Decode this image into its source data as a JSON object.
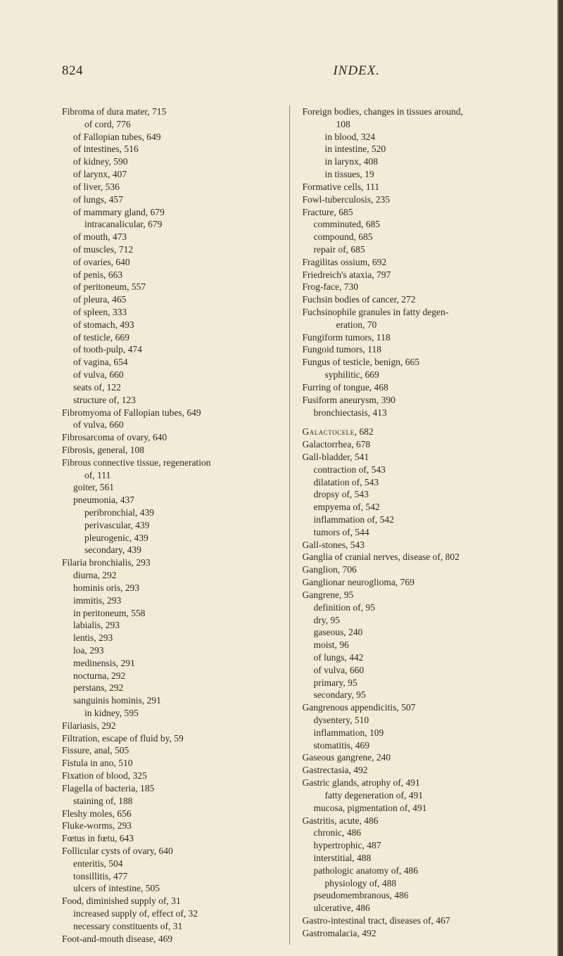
{
  "header": {
    "page_number": "824",
    "title": "INDEX."
  },
  "left": [
    {
      "cls": "main",
      "t": "Fibroma of dura mater, 715"
    },
    {
      "cls": "sub2",
      "t": "of cord, 776"
    },
    {
      "cls": "sub1",
      "t": "of Fallopian tubes, 649"
    },
    {
      "cls": "sub1",
      "t": "of intestines, 516"
    },
    {
      "cls": "sub1",
      "t": "of kidney, 590"
    },
    {
      "cls": "sub1",
      "t": "of larynx, 407"
    },
    {
      "cls": "sub1",
      "t": "of liver, 536"
    },
    {
      "cls": "sub1",
      "t": "of lungs, 457"
    },
    {
      "cls": "sub1",
      "t": "of mammary gland, 679"
    },
    {
      "cls": "sub2",
      "t": "intracanalicular, 679"
    },
    {
      "cls": "sub1",
      "t": "of mouth, 473"
    },
    {
      "cls": "sub1",
      "t": "of muscles, 712"
    },
    {
      "cls": "sub1",
      "t": "of ovaries, 640"
    },
    {
      "cls": "sub1",
      "t": "of penis, 663"
    },
    {
      "cls": "sub1",
      "t": "of peritoneum, 557"
    },
    {
      "cls": "sub1",
      "t": "of pleura, 465"
    },
    {
      "cls": "sub1",
      "t": "of spleen, 333"
    },
    {
      "cls": "sub1",
      "t": "of stomach, 493"
    },
    {
      "cls": "sub1",
      "t": "of testicle, 669"
    },
    {
      "cls": "sub1",
      "t": "of tooth-pulp, 474"
    },
    {
      "cls": "sub1",
      "t": "of vagina, 654"
    },
    {
      "cls": "sub1",
      "t": "of vulva, 660"
    },
    {
      "cls": "sub1",
      "t": "seats of, 122"
    },
    {
      "cls": "sub1",
      "t": "structure of, 123"
    },
    {
      "cls": "main",
      "t": "Fibromyoma of Fallopian tubes, 649"
    },
    {
      "cls": "sub1",
      "t": "of vulva, 660"
    },
    {
      "cls": "main",
      "t": "Fibrosarcoma of ovary, 640"
    },
    {
      "cls": "main",
      "t": "Fibrosis, general, 108"
    },
    {
      "cls": "main",
      "t": "Fibrous connective tissue, regeneration"
    },
    {
      "cls": "sub2",
      "t": "of, 111"
    },
    {
      "cls": "sub1",
      "t": "goiter, 561"
    },
    {
      "cls": "sub1",
      "t": "pneumonia, 437"
    },
    {
      "cls": "sub2",
      "t": "peribronchial, 439"
    },
    {
      "cls": "sub2",
      "t": "perivascular, 439"
    },
    {
      "cls": "sub2",
      "t": "pleurogenic, 439"
    },
    {
      "cls": "sub2",
      "t": "secondary, 439"
    },
    {
      "cls": "main",
      "t": "Filaria bronchialis, 293"
    },
    {
      "cls": "sub1",
      "t": "diurna, 292"
    },
    {
      "cls": "sub1",
      "t": "hominis oris, 293"
    },
    {
      "cls": "sub1",
      "t": "immitis, 293"
    },
    {
      "cls": "sub1",
      "t": "in peritoneum, 558"
    },
    {
      "cls": "sub1",
      "t": "labialis, 293"
    },
    {
      "cls": "sub1",
      "t": "lentis, 293"
    },
    {
      "cls": "sub1",
      "t": "loa, 293"
    },
    {
      "cls": "sub1",
      "t": "medinensis, 291"
    },
    {
      "cls": "sub1",
      "t": "nocturna, 292"
    },
    {
      "cls": "sub1",
      "t": "perstans, 292"
    },
    {
      "cls": "sub1",
      "t": "sanguinis hominis, 291"
    },
    {
      "cls": "sub2",
      "t": "in kidney, 595"
    },
    {
      "cls": "main",
      "t": "Filariasis, 292"
    },
    {
      "cls": "main",
      "t": "Filtration, escape of fluid by, 59"
    },
    {
      "cls": "main",
      "t": "Fissure, anal, 505"
    },
    {
      "cls": "main",
      "t": "Fistula in ano, 510"
    },
    {
      "cls": "main",
      "t": "Fixation of blood, 325"
    },
    {
      "cls": "main",
      "t": "Flagella of bacteria, 185"
    },
    {
      "cls": "sub1",
      "t": "staining of, 188"
    },
    {
      "cls": "main",
      "t": "Fleshy moles, 656"
    },
    {
      "cls": "main",
      "t": "Fluke-worms, 293"
    },
    {
      "cls": "main",
      "t": "Fœtus in fœtu, 643"
    },
    {
      "cls": "main",
      "t": "Follicular cysts of ovary, 640"
    },
    {
      "cls": "sub1",
      "t": "enteritis, 504"
    },
    {
      "cls": "sub1",
      "t": "tonsillitis, 477"
    },
    {
      "cls": "sub1",
      "t": "ulcers of intestine, 505"
    },
    {
      "cls": "main",
      "t": "Food, diminished supply of, 31"
    },
    {
      "cls": "sub1",
      "t": "increased supply of, effect of, 32"
    },
    {
      "cls": "sub1",
      "t": "necessary constituents of, 31"
    },
    {
      "cls": "main",
      "t": "Foot-and-mouth disease, 469"
    }
  ],
  "right": [
    {
      "cls": "main",
      "t": "Foreign bodies, changes in tissues around,"
    },
    {
      "cls": "sub3",
      "t": "108"
    },
    {
      "cls": "sub2",
      "t": "in blood, 324"
    },
    {
      "cls": "sub2",
      "t": "in intestine, 520"
    },
    {
      "cls": "sub2",
      "t": "in larynx, 408"
    },
    {
      "cls": "sub2",
      "t": "in tissues, 19"
    },
    {
      "cls": "main",
      "t": "Formative cells, 111"
    },
    {
      "cls": "main",
      "t": "Fowl-tuberculosis, 235"
    },
    {
      "cls": "main",
      "t": "Fracture, 685"
    },
    {
      "cls": "sub1",
      "t": "comminuted, 685"
    },
    {
      "cls": "sub1",
      "t": "compound, 685"
    },
    {
      "cls": "sub1",
      "t": "repair of, 685"
    },
    {
      "cls": "main",
      "t": "Fragilitas ossium, 692"
    },
    {
      "cls": "main",
      "t": "Friedreich's ataxia, 797"
    },
    {
      "cls": "main",
      "t": "Frog-face, 730"
    },
    {
      "cls": "main",
      "t": "Fuchsin bodies of cancer, 272"
    },
    {
      "cls": "main",
      "t": "Fuchsinophile granules in fatty degen-"
    },
    {
      "cls": "sub3",
      "t": "eration, 70"
    },
    {
      "cls": "main",
      "t": "Fungiform tumors, 118"
    },
    {
      "cls": "main",
      "t": "Fungoid tumors, 118"
    },
    {
      "cls": "main",
      "t": "Fungus of testicle, benign, 665"
    },
    {
      "cls": "sub2",
      "t": "syphilitic, 669"
    },
    {
      "cls": "main",
      "t": "Furring of tongue, 468"
    },
    {
      "cls": "main",
      "t": "Fusiform aneurysm, 390"
    },
    {
      "cls": "sub1",
      "t": "bronchiectasis, 413"
    },
    {
      "cls": "gap",
      "t": ""
    },
    {
      "cls": "main",
      "t": "",
      "sc": "Galactocele",
      "tail": ", 682"
    },
    {
      "cls": "main",
      "t": "Galactorrhea, 678"
    },
    {
      "cls": "main",
      "t": "Gall-bladder, 541"
    },
    {
      "cls": "sub1",
      "t": "contraction of, 543"
    },
    {
      "cls": "sub1",
      "t": "dilatation of, 543"
    },
    {
      "cls": "sub1",
      "t": "dropsy of, 543"
    },
    {
      "cls": "sub1",
      "t": "empyema of, 542"
    },
    {
      "cls": "sub1",
      "t": "inflammation of, 542"
    },
    {
      "cls": "sub1",
      "t": "tumors of, 544"
    },
    {
      "cls": "main",
      "t": "Gall-stones, 543"
    },
    {
      "cls": "main",
      "t": "Ganglia of cranial nerves, disease of, 802"
    },
    {
      "cls": "main",
      "t": "Ganglion, 706"
    },
    {
      "cls": "main",
      "t": "Ganglionar neuroglioma, 769"
    },
    {
      "cls": "main",
      "t": "Gangrene, 95"
    },
    {
      "cls": "sub1",
      "t": "definition of, 95"
    },
    {
      "cls": "sub1",
      "t": "dry, 95"
    },
    {
      "cls": "sub1",
      "t": "gaseous, 240"
    },
    {
      "cls": "sub1",
      "t": "moist, 96"
    },
    {
      "cls": "sub1",
      "t": "of lungs, 442"
    },
    {
      "cls": "sub1",
      "t": "of vulva, 660"
    },
    {
      "cls": "sub1",
      "t": "primary, 95"
    },
    {
      "cls": "sub1",
      "t": "secondary, 95"
    },
    {
      "cls": "main",
      "t": "Gangrenous appendicitis, 507"
    },
    {
      "cls": "sub1",
      "t": "dysentery, 510"
    },
    {
      "cls": "sub1",
      "t": "inflammation, 109"
    },
    {
      "cls": "sub1",
      "t": "stomatitis, 469"
    },
    {
      "cls": "main",
      "t": "Gaseous gangrene, 240"
    },
    {
      "cls": "main",
      "t": "Gastrectasia, 492"
    },
    {
      "cls": "main",
      "t": "Gastric glands, atrophy of, 491"
    },
    {
      "cls": "sub2",
      "t": "fatty degeneration of, 491"
    },
    {
      "cls": "sub1",
      "t": "mucosa, pigmentation of, 491"
    },
    {
      "cls": "main",
      "t": "Gastritis, acute, 486"
    },
    {
      "cls": "sub1",
      "t": "chronic, 486"
    },
    {
      "cls": "sub1",
      "t": "hypertrophic, 487"
    },
    {
      "cls": "sub1",
      "t": "interstitial, 488"
    },
    {
      "cls": "sub1",
      "t": "pathologic anatomy of, 486"
    },
    {
      "cls": "sub2",
      "t": "physiology of, 488"
    },
    {
      "cls": "sub1",
      "t": "pseudomembranous, 486"
    },
    {
      "cls": "sub1",
      "t": "ulcerative, 486"
    },
    {
      "cls": "main",
      "t": "Gastro-intestinal tract, diseases of, 467"
    },
    {
      "cls": "main",
      "t": "Gastromalacia, 492"
    }
  ]
}
